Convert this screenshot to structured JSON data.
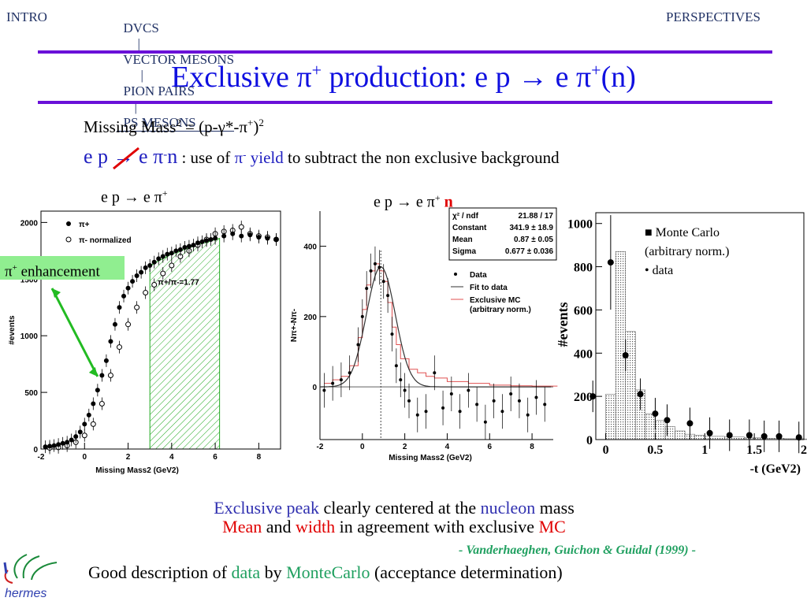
{
  "nav": {
    "intro": "INTRO",
    "center_items": [
      "DVCS",
      "VECTOR MESONS",
      "PION PAIRS",
      "PS MESONS"
    ],
    "separator": "|",
    "perspectives": "PERSPECTIVES"
  },
  "title": {
    "prefix": "Exclusive π",
    "sup1": "+",
    "middle": " production: e p → e π",
    "sup2": "+",
    "suffix": "(n)"
  },
  "formula": {
    "text": "Missing Mass",
    "sup": "2",
    "eq": " = (p-γ*-π",
    "sup_plus": "+",
    "close": ")",
    "sup_end": "2"
  },
  "subtract": {
    "reaction": "e p → e π",
    "sup": "-",
    "n": "n",
    "rest1": " : use of ",
    "pi": "π",
    "pi_sup": "-",
    "yield": " yield",
    "rest2": " to subtract the non exclusive background"
  },
  "colors": {
    "accent_rule": "#6a10d8",
    "title": "#1010e0",
    "highlight_blue": "#3030b0",
    "highlight_red": "#e00000",
    "highlight_green": "#20a060",
    "hatch": "#22aa22",
    "enh_box": "#90ee90"
  },
  "plot1": {
    "caption": "e p → e π",
    "caption_sup": "+",
    "ylabel": "#events",
    "xlabel": "Missing Mass",
    "xlabel_sup": "2",
    "xlabel_unit": " (GeV",
    "xlabel_unit_sup": "2",
    "xlabel_close": ")",
    "yticks": [
      "0",
      "500",
      "1000",
      "1500",
      "2000"
    ],
    "xticks": [
      "-2",
      "0",
      "2",
      "4",
      "6",
      "8"
    ],
    "legend": [
      "π",
      "π",
      " normalized"
    ],
    "legend_sups": [
      "+",
      "-"
    ],
    "ratio_label": "π",
    "ratio_sup1": "+",
    "ratio_mid": "/π",
    "ratio_sup2": "-",
    "ratio_val": "=1.77",
    "enhancement": "π",
    "enhancement_sup": "+",
    "enhancement_text": " enhancement"
  },
  "plot2": {
    "caption": "e p → e π",
    "caption_sup": "+",
    "caption_n": " n",
    "ylabel": "N",
    "yticks": [
      "0",
      "200",
      "400"
    ],
    "xticks": [
      "-2",
      "0",
      "2",
      "4",
      "6",
      "8"
    ],
    "xlabel": "Missing Mass",
    "xlabel_sup": "2",
    "xlabel_unit": " (GeV",
    "xlabel_unit_sup": "2",
    "xlabel_close": ")",
    "stats": [
      [
        "χ² / ndf",
        "21.88 / 17"
      ],
      [
        "Constant",
        "341.9 ± 18.9"
      ],
      [
        "Mean",
        "0.87 ± 0.05"
      ],
      [
        "Sigma",
        "0.677 ± 0.036"
      ]
    ],
    "legend": [
      "Data",
      "Fit to data",
      "Exclusive MC",
      "(arbitrary norm.)"
    ]
  },
  "plot3": {
    "ylabel": "#events",
    "yticks": [
      "0",
      "200",
      "400",
      "600",
      "800",
      "1000"
    ],
    "xticks": [
      "0",
      "0.5",
      "1",
      "1.5",
      "2"
    ],
    "xlabel": "-t (GeV",
    "xlabel_sup": "2",
    "xlabel_close": ")",
    "legend": [
      "■ Monte Carlo",
      "(arbitrary norm.)",
      "• data"
    ]
  },
  "chart_data": [
    {
      "type": "scatter",
      "title": "e p → e π+",
      "xlabel": "Missing Mass² (GeV²)",
      "ylabel": "#events",
      "xlim": [
        -2,
        9
      ],
      "ylim": [
        0,
        2100
      ],
      "series": [
        {
          "name": "π+",
          "x": [
            -1.8,
            -1.6,
            -1.4,
            -1.2,
            -1.0,
            -0.8,
            -0.6,
            -0.4,
            -0.2,
            0.0,
            0.2,
            0.4,
            0.6,
            0.8,
            1.0,
            1.2,
            1.4,
            1.6,
            1.8,
            2.0,
            2.2,
            2.4,
            2.6,
            2.8,
            3.0,
            3.2,
            3.4,
            3.6,
            3.8,
            4.0,
            4.2,
            4.4,
            4.6,
            4.8,
            5.0,
            5.2,
            5.4,
            5.6,
            5.8,
            6.0,
            6.4,
            6.8,
            7.2,
            7.6,
            8.0,
            8.4,
            8.8
          ],
          "y": [
            20,
            25,
            30,
            40,
            50,
            60,
            80,
            110,
            150,
            220,
            300,
            400,
            520,
            650,
            780,
            950,
            1100,
            1250,
            1350,
            1420,
            1480,
            1530,
            1560,
            1600,
            1620,
            1650,
            1680,
            1700,
            1720,
            1730,
            1750,
            1760,
            1780,
            1790,
            1800,
            1820,
            1830,
            1840,
            1850,
            1860,
            1880,
            1900,
            1880,
            1890,
            1870,
            1860,
            1850
          ]
        },
        {
          "name": "π- normalized",
          "x": [
            -1.6,
            -1.2,
            -0.8,
            -0.4,
            0.0,
            0.4,
            0.8,
            1.2,
            1.6,
            2.0,
            2.4,
            2.8,
            3.2,
            3.6,
            4.0,
            4.4,
            4.8,
            5.2,
            5.6,
            6.0,
            6.4,
            6.8,
            7.2,
            7.6,
            8.0,
            8.4,
            8.8
          ],
          "y": [
            10,
            15,
            30,
            60,
            120,
            220,
            400,
            650,
            900,
            1100,
            1250,
            1380,
            1450,
            1550,
            1620,
            1700,
            1750,
            1800,
            1850,
            1900,
            1920,
            1930,
            1960,
            1900,
            1880,
            1870,
            1850
          ]
        }
      ],
      "annotations": [
        "π+/π- = 1.77",
        "π+ enhancement"
      ]
    },
    {
      "type": "scatter",
      "title": "e p → e π+ n",
      "xlabel": "Missing Mass² (GeV²)",
      "ylabel": "N π+ - N π-",
      "xlim": [
        -2,
        9
      ],
      "ylim": [
        -150,
        500
      ],
      "series": [
        {
          "name": "Data",
          "x": [
            -1.8,
            -1.4,
            -1.0,
            -0.6,
            -0.2,
            0.0,
            0.2,
            0.4,
            0.6,
            0.8,
            1.0,
            1.2,
            1.4,
            1.6,
            1.8,
            2.0,
            2.2,
            2.6,
            3.0,
            3.4,
            3.8,
            4.2,
            4.6,
            5.0,
            5.4,
            5.8,
            6.2,
            6.6,
            7.0,
            7.4,
            7.8,
            8.2,
            8.6
          ],
          "y": [
            -10,
            10,
            20,
            40,
            120,
            200,
            280,
            330,
            350,
            340,
            300,
            260,
            150,
            60,
            20,
            -10,
            -40,
            -80,
            -70,
            40,
            -60,
            -20,
            -70,
            -10,
            -50,
            -100,
            -40,
            -70,
            -20,
            -40,
            -80,
            -30,
            -50
          ]
        }
      ],
      "fit": {
        "constant": 341.9,
        "mean": 0.87,
        "sigma": 0.677
      },
      "legend": [
        "Data",
        "Fit to data",
        "Exclusive MC (arbitrary norm.)"
      ]
    },
    {
      "type": "bar",
      "xlabel": "-t (GeV²)",
      "ylabel": "#events",
      "xlim": [
        -0.1,
        2.0
      ],
      "ylim": [
        0,
        1050
      ],
      "series": [
        {
          "name": "Monte Carlo",
          "x": [
            0.0,
            0.1,
            0.2,
            0.3,
            0.4,
            0.5,
            0.6,
            0.7,
            0.8,
            0.9,
            1.0,
            1.2,
            1.4,
            1.6,
            1.8,
            2.0
          ],
          "values": [
            210,
            870,
            500,
            230,
            120,
            90,
            60,
            40,
            25,
            20,
            15,
            12,
            8,
            6,
            4,
            3
          ]
        },
        {
          "name": "data",
          "x": [
            -0.13,
            0.05,
            0.2,
            0.35,
            0.5,
            0.62,
            0.85,
            1.05,
            1.25,
            1.45,
            1.6,
            1.75,
            1.95
          ],
          "values": [
            200,
            820,
            390,
            210,
            120,
            90,
            75,
            30,
            20,
            20,
            15,
            15,
            10
          ]
        }
      ]
    }
  ],
  "bottom": {
    "line1_a": "Exclusive peak",
    "line1_b": " clearly centered at the ",
    "line1_c": "nucleon",
    "line1_d": " mass",
    "line2_a": "Mean",
    "line2_b": " and ",
    "line2_c": "width",
    "line2_d": " in agreement with exclusive  ",
    "line2_e": "MC",
    "citation": "- Vanderhaeghen, Guichon & Guidal (1999) -",
    "line3_a": "Good description of ",
    "line3_b": "data",
    "line3_c": " by ",
    "line3_d": "MonteCarlo",
    "line3_e": " (acceptance determination)"
  },
  "logo": {
    "text": "hermes"
  }
}
